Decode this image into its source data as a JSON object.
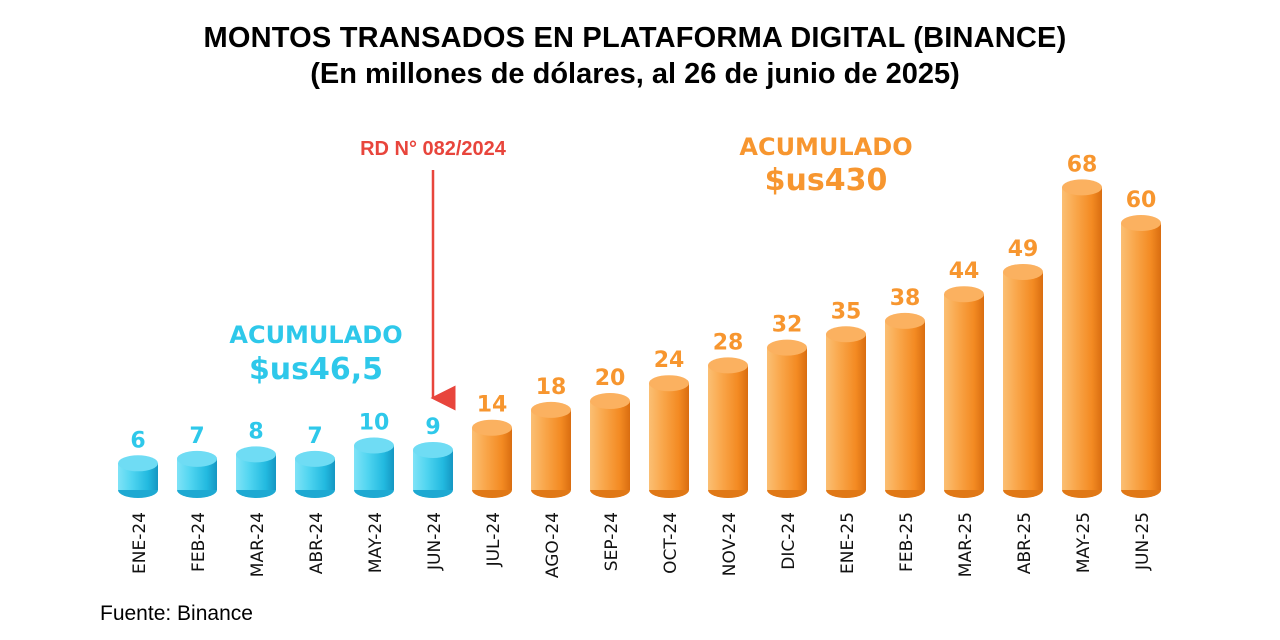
{
  "title": "MONTOS TRANSADOS EN PLATAFORMA DIGITAL (BINANCE)",
  "subtitle": "(En millones de dólares, al 26 de junio de 2025)",
  "source": "Fuente: Binance",
  "colors": {
    "before": "#2ec8ea",
    "after": "#f7962f",
    "marker": "#e8453c"
  },
  "chart_data": {
    "type": "bar",
    "categories": [
      "ENE-24",
      "FEB-24",
      "MAR-24",
      "ABR-24",
      "MAY-24",
      "JUN-24",
      "JUL-24",
      "AGO-24",
      "SEP-24",
      "OCT-24",
      "NOV-24",
      "DIC-24",
      "ENE-25",
      "FEB-25",
      "MAR-25",
      "ABR-25",
      "MAY-25",
      "JUN-25"
    ],
    "values": [
      6,
      7,
      8,
      7,
      10,
      9,
      14,
      18,
      20,
      24,
      28,
      32,
      35,
      38,
      44,
      49,
      68,
      60
    ],
    "data_labels": [
      "6",
      "7",
      "8",
      "7",
      "10",
      "9",
      "14",
      "18",
      "20",
      "24",
      "28",
      "32",
      "35",
      "38",
      "44",
      "49",
      "68",
      "60"
    ],
    "groups": [
      "before",
      "before",
      "before",
      "before",
      "before",
      "before",
      "after",
      "after",
      "after",
      "after",
      "after",
      "after",
      "after",
      "after",
      "after",
      "after",
      "after",
      "after"
    ],
    "marker_label": "RD N° 082/2024",
    "annotations": [
      {
        "group": "before",
        "label": "ACUMULADO",
        "value": "$us46,5"
      },
      {
        "group": "after",
        "label": "ACUMULADO",
        "value": "$us430"
      }
    ],
    "ylim": [
      0,
      68
    ],
    "grid": false,
    "legend": "none"
  }
}
